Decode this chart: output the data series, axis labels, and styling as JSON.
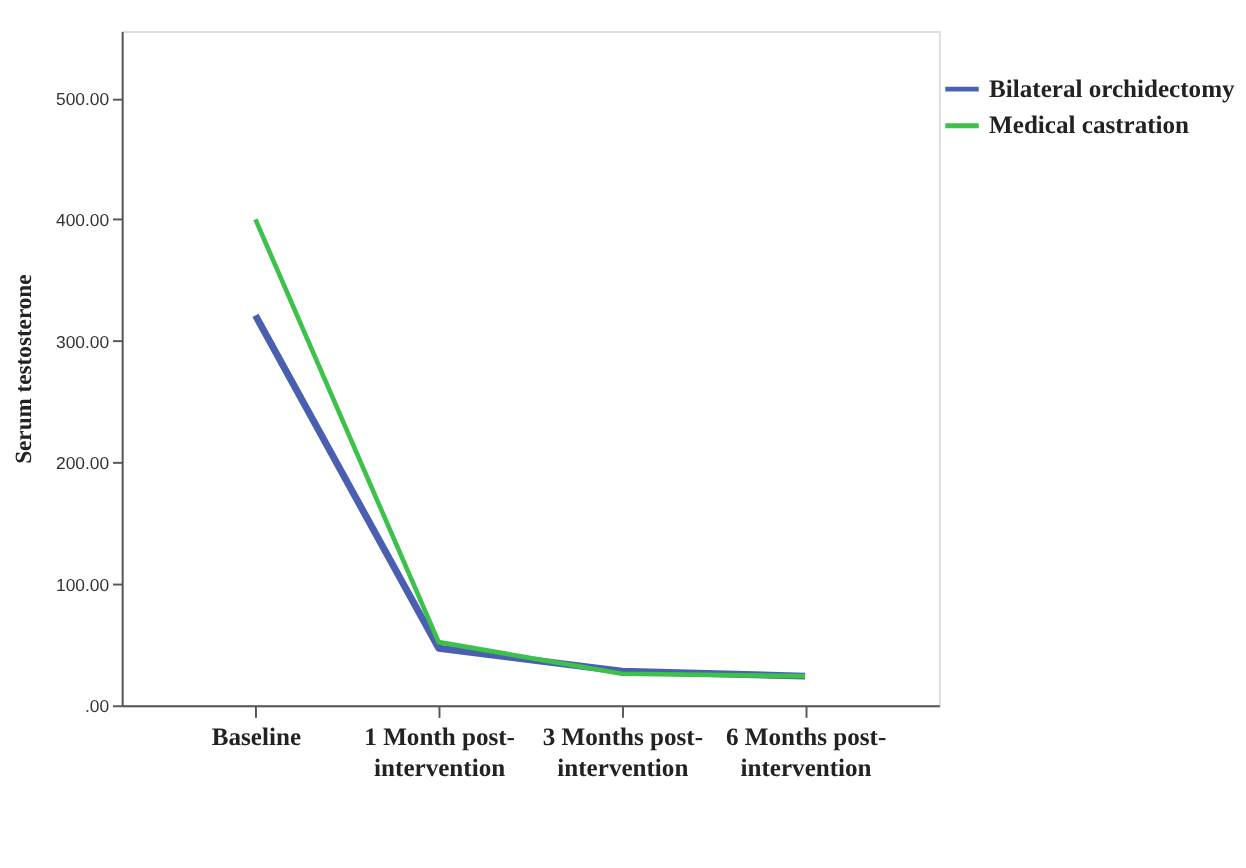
{
  "chart_data": {
    "type": "line",
    "ylabel": "Serum testosterone",
    "categories": [
      "Baseline",
      "1 Month post-intervention",
      "3 Months post-intervention",
      "6 Months post-intervention"
    ],
    "series": [
      {
        "name": "Bilateral orchidectomy",
        "color": "#4a5fb0",
        "values": [
          321,
          47,
          28,
          24
        ]
      },
      {
        "name": "Medical castration",
        "color": "#3cc14a",
        "values": [
          400,
          52,
          26,
          24
        ]
      }
    ],
    "ylim": [
      0,
      555
    ],
    "yticks": [
      {
        "value": 0,
        "label": ".00"
      },
      {
        "value": 100,
        "label": "100.00"
      },
      {
        "value": 200,
        "label": "200.00"
      },
      {
        "value": 300,
        "label": "300.00"
      },
      {
        "value": 400,
        "label": "400.00"
      },
      {
        "value": 500,
        "label": "500.00"
      }
    ],
    "grid": false,
    "legend": "top right",
    "marker": "none",
    "line_style": "solid"
  }
}
